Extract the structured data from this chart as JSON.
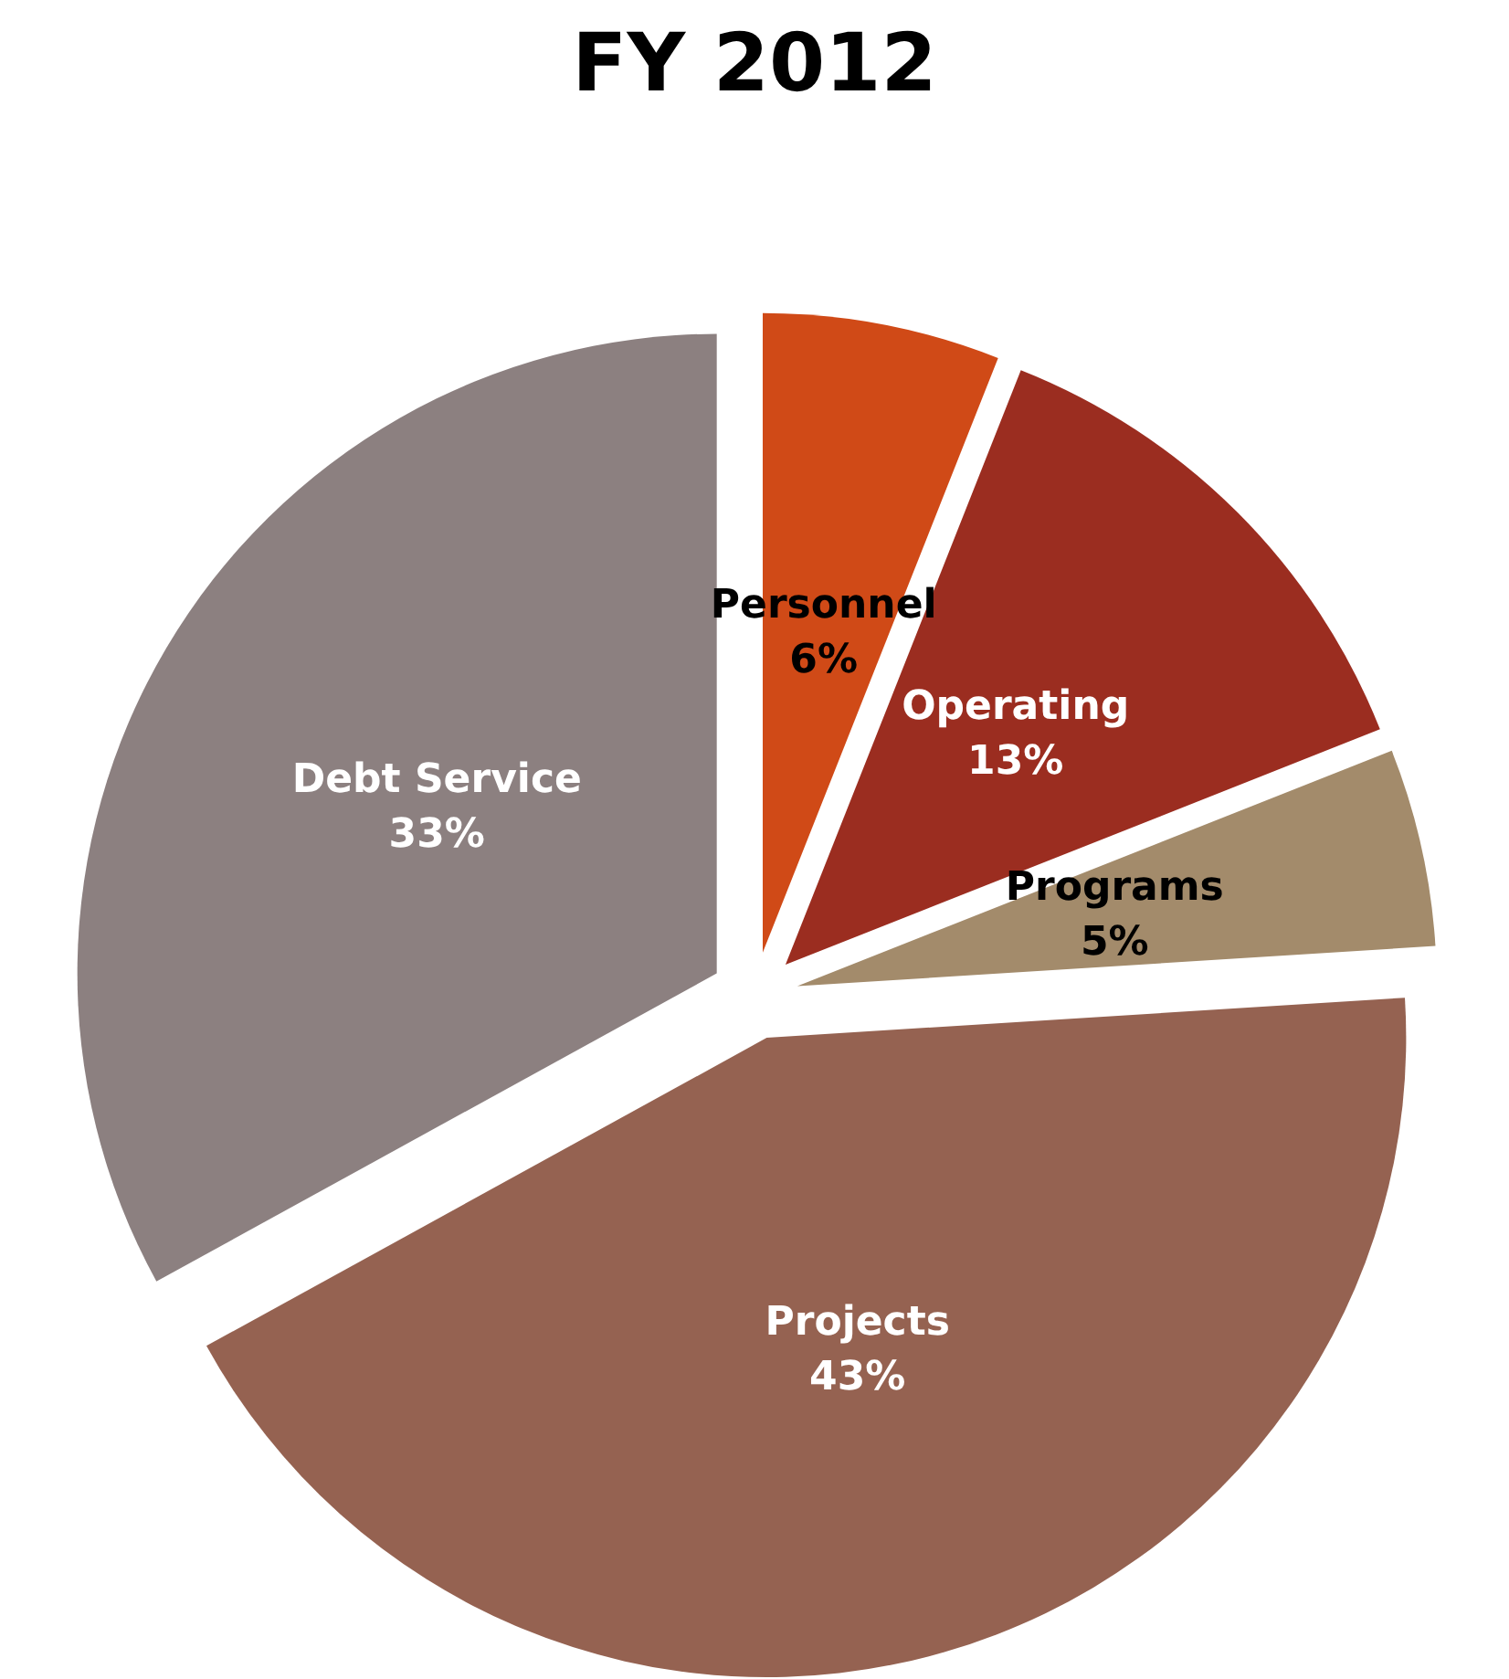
{
  "chart_data": {
    "type": "pie",
    "title": "FY 2012",
    "categories": [
      "Personnel",
      "Operating",
      "Programs",
      "Projects",
      "Debt Service"
    ],
    "values": [
      6,
      13,
      5,
      43,
      33
    ],
    "colors": [
      "#d04a17",
      "#9b2d20",
      "#a38b6b",
      "#956251",
      "#8c8080"
    ],
    "value_labels": [
      "6%",
      "13%",
      "5%",
      "43%",
      "33%"
    ],
    "legend": false
  }
}
